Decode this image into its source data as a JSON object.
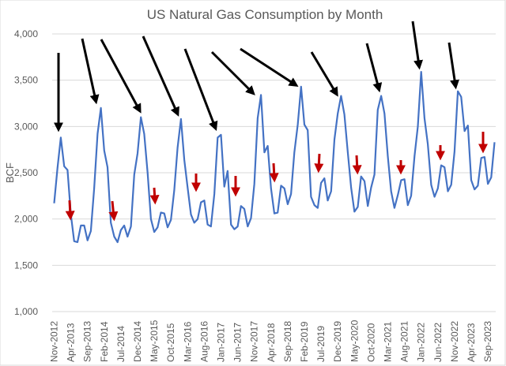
{
  "chart_data": {
    "type": "line",
    "title": "US Natural Gas Consumption by Month",
    "xlabel": "",
    "ylabel": "BCF",
    "ylim": [
      1000,
      4000
    ],
    "yticks": [
      "1,000",
      "1,500",
      "2,000",
      "2,500",
      "3,000",
      "3,500",
      "4,000"
    ],
    "grid": true,
    "legend": "none",
    "line_color": "#4472C4",
    "annotation_colors": {
      "peak_arrows": "#000000",
      "summer_arrows": "#C00000"
    },
    "start_month": "Nov-2012",
    "xtick_labels": [
      "Nov-2012",
      "Apr-2013",
      "Sep-2013",
      "Feb-2014",
      "Jul-2014",
      "Dec-2014",
      "May-2015",
      "Oct-2015",
      "Mar-2016",
      "Aug-2016",
      "Jan-2017",
      "Jun-2017",
      "Nov-2017",
      "Apr-2018",
      "Sep-2018",
      "Feb-2019",
      "Jul-2019",
      "Dec-2019",
      "May-2020",
      "Oct-2020",
      "Mar-2021",
      "Aug-2021",
      "Jan-2022",
      "Jun-2022",
      "Nov-2022",
      "Apr-2023",
      "Sep-2023"
    ],
    "series": [
      {
        "values": [
          2170,
          2550,
          2880,
          2570,
          2530,
          2050,
          1760,
          1750,
          1930,
          1930,
          1770,
          1870,
          2330,
          2920,
          3200,
          2740,
          2560,
          1960,
          1810,
          1750,
          1880,
          1930,
          1810,
          1920,
          2480,
          2710,
          3100,
          2920,
          2500,
          2000,
          1860,
          1910,
          2070,
          2060,
          1910,
          1990,
          2310,
          2770,
          3080,
          2640,
          2340,
          2050,
          1960,
          2000,
          2180,
          2200,
          1940,
          1920,
          2270,
          2880,
          2910,
          2350,
          2520,
          1940,
          1890,
          1920,
          2140,
          2110,
          1920,
          2010,
          2380,
          3090,
          3340,
          2720,
          2790,
          2330,
          2060,
          2070,
          2360,
          2330,
          2160,
          2270,
          2720,
          3020,
          3430,
          3020,
          2960,
          2240,
          2150,
          2120,
          2390,
          2440,
          2200,
          2300,
          2860,
          3140,
          3330,
          3130,
          2720,
          2340,
          2080,
          2130,
          2460,
          2410,
          2140,
          2340,
          2480,
          3180,
          3330,
          3140,
          2680,
          2300,
          2120,
          2260,
          2420,
          2430,
          2150,
          2250,
          2680,
          3000,
          3590,
          3090,
          2810,
          2370,
          2240,
          2330,
          2580,
          2560,
          2300,
          2370,
          2730,
          3380,
          3320,
          2950,
          3010,
          2420,
          2320,
          2360,
          2660,
          2670,
          2380,
          2450,
          2830
        ]
      }
    ]
  }
}
